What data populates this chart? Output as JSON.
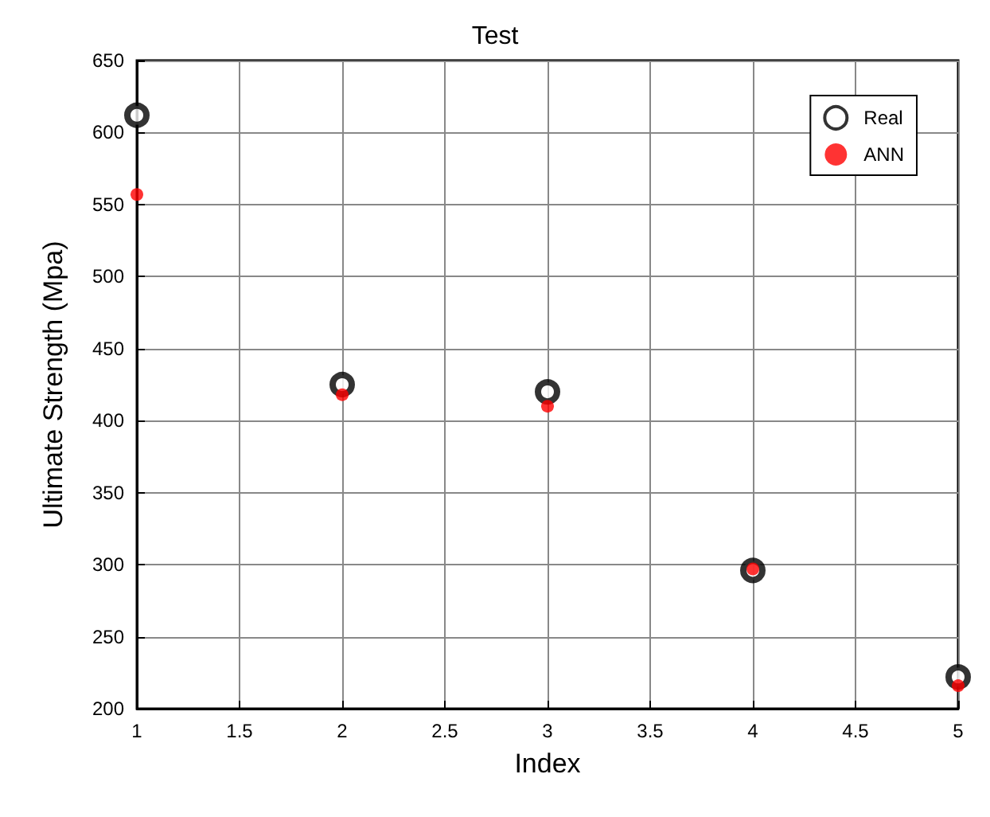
{
  "chart_data": {
    "type": "scatter",
    "title": "Test",
    "xlabel": "Index",
    "ylabel": "Ultimate Strength (Mpa)",
    "x": [
      1,
      2,
      3,
      4,
      5
    ],
    "series": [
      {
        "name": "Real",
        "color": "#000000",
        "marker": "circle",
        "values": [
          612,
          425,
          420,
          296,
          222
        ]
      },
      {
        "name": "ANN",
        "color": "#ff0000",
        "marker": "circle",
        "values": [
          557,
          418,
          410,
          297,
          216
        ]
      }
    ],
    "xlim": [
      1,
      5
    ],
    "xticks": [
      1,
      1.5,
      2,
      2.5,
      3,
      3.5,
      4,
      4.5,
      5
    ],
    "ylim": [
      200,
      650
    ],
    "yticks": [
      200,
      250,
      300,
      350,
      400,
      450,
      500,
      550,
      600,
      650
    ],
    "grid": true,
    "legend": "top right"
  }
}
